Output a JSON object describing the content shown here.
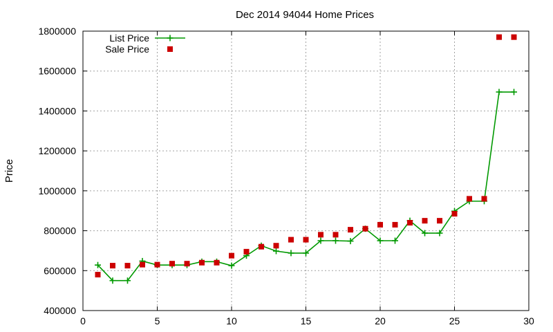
{
  "chart_data": {
    "type": "line",
    "title": "Dec 2014 94044 Home Prices",
    "xlabel": "",
    "ylabel": "Price",
    "xlim": [
      0,
      30
    ],
    "ylim": [
      400000,
      1800000
    ],
    "x_ticks": [
      "0",
      "5",
      "10",
      "15",
      "20",
      "25",
      "30"
    ],
    "y_ticks": [
      "400000",
      "600000",
      "800000",
      "1000000",
      "1200000",
      "1400000",
      "1600000",
      "1800000"
    ],
    "grid": true,
    "legend_position": "top-left",
    "series": [
      {
        "name": "List Price",
        "style": "line-with-plus-markers",
        "color": "#009900",
        "points": [
          [
            1,
            628000
          ],
          [
            2,
            550000
          ],
          [
            3,
            550000
          ],
          [
            4,
            648000
          ],
          [
            5,
            628000
          ],
          [
            6,
            628000
          ],
          [
            7,
            628000
          ],
          [
            8,
            645000
          ],
          [
            9,
            645000
          ],
          [
            10,
            625000
          ],
          [
            11,
            675000
          ],
          [
            12,
            725000
          ],
          [
            13,
            698000
          ],
          [
            14,
            688000
          ],
          [
            15,
            688000
          ],
          [
            16,
            750000
          ],
          [
            17,
            750000
          ],
          [
            18,
            748000
          ],
          [
            19,
            810000
          ],
          [
            20,
            750000
          ],
          [
            21,
            750000
          ],
          [
            22,
            850000
          ],
          [
            23,
            788000
          ],
          [
            24,
            788000
          ],
          [
            25,
            898000
          ],
          [
            26,
            948000
          ],
          [
            27,
            948000
          ],
          [
            28,
            1495000
          ],
          [
            29,
            1495000
          ]
        ]
      },
      {
        "name": "Sale Price",
        "style": "square-markers",
        "color": "#cc0000",
        "points": [
          [
            1,
            580000
          ],
          [
            2,
            625000
          ],
          [
            3,
            625000
          ],
          [
            4,
            630000
          ],
          [
            5,
            630000
          ],
          [
            6,
            635000
          ],
          [
            7,
            635000
          ],
          [
            8,
            640000
          ],
          [
            9,
            640000
          ],
          [
            10,
            675000
          ],
          [
            11,
            695000
          ],
          [
            12,
            720000
          ],
          [
            13,
            725000
          ],
          [
            14,
            755000
          ],
          [
            15,
            755000
          ],
          [
            16,
            780000
          ],
          [
            17,
            780000
          ],
          [
            18,
            805000
          ],
          [
            19,
            810000
          ],
          [
            20,
            830000
          ],
          [
            21,
            830000
          ],
          [
            22,
            840000
          ],
          [
            23,
            850000
          ],
          [
            24,
            850000
          ],
          [
            25,
            885000
          ],
          [
            26,
            960000
          ],
          [
            27,
            960000
          ],
          [
            28,
            1770000
          ],
          [
            29,
            1770000
          ]
        ]
      }
    ]
  }
}
